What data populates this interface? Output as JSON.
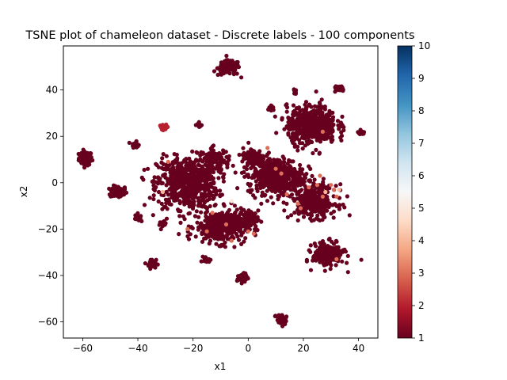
{
  "chart_data": {
    "type": "scatter",
    "title": "TSNE plot of chameleon dataset - Discrete labels - 100 components",
    "xlabel": "x1",
    "ylabel": "x2",
    "xlim": [
      -67,
      47
    ],
    "ylim": [
      -67,
      59
    ],
    "xticks": [
      -60,
      -40,
      -20,
      0,
      20,
      40
    ],
    "yticks": [
      -60,
      -40,
      -20,
      0,
      20,
      40
    ],
    "grid": false,
    "colormap": "RdBu",
    "colorbar": {
      "range": [
        1,
        10
      ],
      "ticks": [
        1,
        2,
        3,
        4,
        5,
        6,
        7,
        8,
        9,
        10
      ],
      "stops": [
        "#67001f",
        "#b2182b",
        "#d6604d",
        "#f4a582",
        "#fddbc7",
        "#f7f7f7",
        "#d1e5f0",
        "#92c5de",
        "#4393c3",
        "#2166ac",
        "#053061"
      ]
    },
    "clusters": [
      {
        "x": -59,
        "y": 10.5,
        "sx": 1.2,
        "sy": 1.5,
        "n": 80,
        "label": 1
      },
      {
        "x": -47,
        "y": -4,
        "sx": 1.5,
        "sy": 1.3,
        "n": 90,
        "label": 1
      },
      {
        "x": -41,
        "y": 16.5,
        "sx": 0.6,
        "sy": 0.6,
        "n": 25,
        "label": 1
      },
      {
        "x": -40,
        "y": -15,
        "sx": 0.5,
        "sy": 0.8,
        "n": 25,
        "label": 1
      },
      {
        "x": -35,
        "y": -35,
        "sx": 0.8,
        "sy": 1.0,
        "n": 35,
        "label": 1
      },
      {
        "x": -31,
        "y": -18,
        "sx": 0.6,
        "sy": 0.6,
        "n": 20,
        "label": 1
      },
      {
        "x": -30.5,
        "y": 24,
        "sx": 0.8,
        "sy": 0.5,
        "n": 22,
        "label": 2
      },
      {
        "x": -18,
        "y": 25,
        "sx": 0.6,
        "sy": 0.5,
        "n": 15,
        "label": 1
      },
      {
        "x": -7,
        "y": 49.5,
        "sx": 2.0,
        "sy": 1.6,
        "n": 110,
        "label": 1
      },
      {
        "x": -22,
        "y": 0,
        "sx": 5.5,
        "sy": 5.5,
        "n": 650,
        "label": 1
      },
      {
        "x": -12,
        "y": 10,
        "sx": 2.5,
        "sy": 2.5,
        "n": 90,
        "label": 1
      },
      {
        "x": -10,
        "y": -19,
        "sx": 4.5,
        "sy": 3.5,
        "n": 380,
        "label": 1
      },
      {
        "x": 0,
        "y": -16,
        "sx": 1.8,
        "sy": 2.0,
        "n": 80,
        "label": 1
      },
      {
        "x": -15,
        "y": -33,
        "sx": 0.6,
        "sy": 0.6,
        "n": 15,
        "label": 1
      },
      {
        "x": -2,
        "y": -41,
        "sx": 1.0,
        "sy": 1.0,
        "n": 40,
        "label": 1
      },
      {
        "x": 2,
        "y": 11,
        "sx": 2.0,
        "sy": 2.0,
        "n": 100,
        "label": 1
      },
      {
        "x": 10,
        "y": 3,
        "sx": 5.0,
        "sy": 4.0,
        "n": 480,
        "label": 1
      },
      {
        "x": 23,
        "y": 25,
        "sx": 4.5,
        "sy": 4.0,
        "n": 550,
        "label": 1
      },
      {
        "x": 8.5,
        "y": 32,
        "sx": 0.6,
        "sy": 0.5,
        "n": 15,
        "label": 1
      },
      {
        "x": 17,
        "y": 39,
        "sx": 0.6,
        "sy": 0.5,
        "n": 10,
        "label": 1
      },
      {
        "x": 33,
        "y": 40.5,
        "sx": 0.9,
        "sy": 0.7,
        "n": 30,
        "label": 1
      },
      {
        "x": 41,
        "y": 21.5,
        "sx": 0.7,
        "sy": 0.4,
        "n": 18,
        "label": 1
      },
      {
        "x": 24,
        "y": -8,
        "sx": 4.0,
        "sy": 3.5,
        "n": 330,
        "label": 1
      },
      {
        "x": 29,
        "y": -31,
        "sx": 2.8,
        "sy": 2.5,
        "n": 220,
        "label": 1
      },
      {
        "x": 12,
        "y": -59,
        "sx": 1.0,
        "sy": 1.2,
        "n": 45,
        "label": 1
      }
    ],
    "highlights": [
      {
        "x": -29,
        "y": 9,
        "label": 3
      },
      {
        "x": -31,
        "y": -4,
        "label": 4
      },
      {
        "x": -22,
        "y": -20,
        "label": 3
      },
      {
        "x": -13,
        "y": -13,
        "label": 3
      },
      {
        "x": -15,
        "y": -21,
        "label": 3
      },
      {
        "x": -8,
        "y": -18,
        "label": 3
      },
      {
        "x": -6,
        "y": -25,
        "label": 3
      },
      {
        "x": 0,
        "y": -21,
        "label": 3
      },
      {
        "x": -6,
        "y": -8,
        "label": 5
      },
      {
        "x": 2,
        "y": -22,
        "label": 3
      },
      {
        "x": 7,
        "y": 15,
        "label": 3
      },
      {
        "x": 12,
        "y": 4,
        "label": 3
      },
      {
        "x": 14,
        "y": -5,
        "label": 3
      },
      {
        "x": 18,
        "y": -9,
        "label": 3
      },
      {
        "x": 19,
        "y": -11,
        "label": 3
      },
      {
        "x": 22,
        "y": -2,
        "label": 3
      },
      {
        "x": 25,
        "y": -1,
        "label": 3
      },
      {
        "x": 26,
        "y": 3,
        "label": 3
      },
      {
        "x": 27,
        "y": -6,
        "label": 3
      },
      {
        "x": 28,
        "y": -4,
        "label": 4
      },
      {
        "x": 30,
        "y": -1,
        "label": 3
      },
      {
        "x": 31,
        "y": -3,
        "label": 3
      },
      {
        "x": 33,
        "y": -3,
        "label": 4
      },
      {
        "x": 32,
        "y": -6,
        "label": 3
      },
      {
        "x": 27,
        "y": 22,
        "label": 3
      },
      {
        "x": 32,
        "y": -33,
        "label": 3
      },
      {
        "x": 10,
        "y": 6,
        "label": 3
      }
    ]
  }
}
